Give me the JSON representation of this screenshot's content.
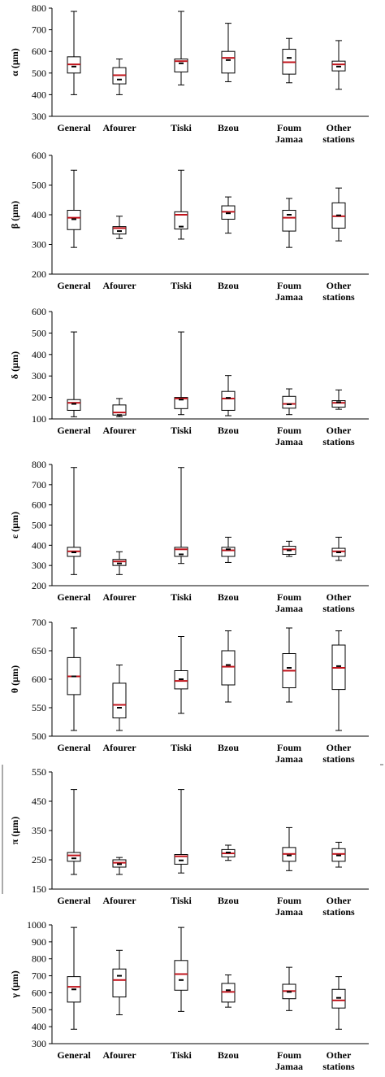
{
  "chart_data": [
    {
      "type": "boxplot",
      "ylabel": "α (µm)",
      "ylim": [
        300,
        800
      ],
      "yticks": [
        300,
        400,
        500,
        600,
        700,
        800
      ],
      "categories": [
        "General",
        "Afourer",
        "Tiski",
        "Bzou",
        "Foum Jamaa",
        "Other stations"
      ],
      "boxes": [
        {
          "min": 400,
          "q1": 500,
          "median": 540,
          "q3": 575,
          "max": 785,
          "mean": 530
        },
        {
          "min": 400,
          "q1": 450,
          "median": 490,
          "q3": 525,
          "max": 565,
          "mean": 470
        },
        {
          "min": 445,
          "q1": 505,
          "median": 555,
          "q3": 565,
          "max": 785,
          "mean": 545
        },
        {
          "min": 460,
          "q1": 500,
          "median": 570,
          "q3": 600,
          "max": 730,
          "mean": 560
        },
        {
          "min": 455,
          "q1": 495,
          "median": 550,
          "q3": 610,
          "max": 660,
          "mean": 570
        },
        {
          "min": 425,
          "q1": 510,
          "median": 540,
          "q3": 555,
          "max": 650,
          "mean": 530
        }
      ]
    },
    {
      "type": "boxplot",
      "ylabel": "β (µm)",
      "ylim": [
        200,
        600
      ],
      "yticks": [
        200,
        300,
        400,
        500,
        600
      ],
      "categories": [
        "General",
        "Afourer",
        "Tiski",
        "Bzou",
        "Foum Jamaa",
        "Other stations"
      ],
      "boxes": [
        {
          "min": 290,
          "q1": 350,
          "median": 390,
          "q3": 415,
          "max": 550,
          "mean": 385
        },
        {
          "min": 320,
          "q1": 335,
          "median": 355,
          "q3": 360,
          "max": 395,
          "mean": 345
        },
        {
          "min": 318,
          "q1": 352,
          "median": 400,
          "q3": 410,
          "max": 550,
          "mean": 360
        },
        {
          "min": 338,
          "q1": 385,
          "median": 410,
          "q3": 430,
          "max": 460,
          "mean": 405
        },
        {
          "min": 290,
          "q1": 345,
          "median": 390,
          "q3": 415,
          "max": 455,
          "mean": 400
        },
        {
          "min": 312,
          "q1": 355,
          "median": 395,
          "q3": 440,
          "max": 490,
          "mean": 398
        }
      ]
    },
    {
      "type": "boxplot",
      "ylabel": "δ (µm)",
      "ylim": [
        100,
        600
      ],
      "yticks": [
        100,
        200,
        300,
        400,
        500,
        600
      ],
      "categories": [
        "General",
        "Afourer",
        "Tiski",
        "Bzou",
        "Foum Jamaa",
        "Other stations"
      ],
      "boxes": [
        {
          "min": 110,
          "q1": 140,
          "median": 175,
          "q3": 190,
          "max": 505,
          "mean": 170
        },
        {
          "min": 110,
          "q1": 118,
          "median": 130,
          "q3": 165,
          "max": 195,
          "mean": 118
        },
        {
          "min": 120,
          "q1": 148,
          "median": 195,
          "q3": 200,
          "max": 505,
          "mean": 190
        },
        {
          "min": 115,
          "q1": 140,
          "median": 195,
          "q3": 228,
          "max": 302,
          "mean": 198
        },
        {
          "min": 120,
          "q1": 150,
          "median": 170,
          "q3": 205,
          "max": 240,
          "mean": 168
        },
        {
          "min": 145,
          "q1": 155,
          "median": 175,
          "q3": 185,
          "max": 235,
          "mean": 178
        }
      ]
    },
    {
      "type": "boxplot",
      "ylabel": "ε (µm)",
      "ylim": [
        200,
        800
      ],
      "yticks": [
        200,
        300,
        400,
        500,
        600,
        700,
        800
      ],
      "categories": [
        "General",
        "Afourer",
        "Tiski",
        "Bzou",
        "Foum Jamaa",
        "Other stations"
      ],
      "boxes": [
        {
          "min": 255,
          "q1": 345,
          "median": 370,
          "q3": 390,
          "max": 785,
          "mean": 365
        },
        {
          "min": 255,
          "q1": 300,
          "median": 320,
          "q3": 330,
          "max": 368,
          "mean": 310
        },
        {
          "min": 310,
          "q1": 345,
          "median": 380,
          "q3": 390,
          "max": 785,
          "mean": 355
        },
        {
          "min": 315,
          "q1": 345,
          "median": 375,
          "q3": 390,
          "max": 440,
          "mean": 380
        },
        {
          "min": 345,
          "q1": 355,
          "median": 380,
          "q3": 395,
          "max": 420,
          "mean": 375
        },
        {
          "min": 325,
          "q1": 345,
          "median": 370,
          "q3": 385,
          "max": 440,
          "mean": 365
        }
      ]
    },
    {
      "type": "boxplot",
      "ylabel": "θ (µm)",
      "ylim": [
        500,
        700
      ],
      "yticks": [
        500,
        550,
        600,
        650,
        700
      ],
      "categories": [
        "General",
        "Afourer",
        "Tiski",
        "Bzou",
        "Foum Jamaa",
        "Other stations"
      ],
      "boxes": [
        {
          "min": 510,
          "q1": 573,
          "median": 605,
          "q3": 638,
          "max": 690,
          "mean": 605
        },
        {
          "min": 510,
          "q1": 532,
          "median": 555,
          "q3": 593,
          "max": 625,
          "mean": 550
        },
        {
          "min": 540,
          "q1": 583,
          "median": 597,
          "q3": 615,
          "max": 675,
          "mean": 600
        },
        {
          "min": 560,
          "q1": 590,
          "median": 622,
          "q3": 650,
          "max": 685,
          "mean": 625
        },
        {
          "min": 560,
          "q1": 585,
          "median": 615,
          "q3": 645,
          "max": 690,
          "mean": 620
        },
        {
          "min": 510,
          "q1": 582,
          "median": 620,
          "q3": 660,
          "max": 685,
          "mean": 623
        }
      ]
    },
    {
      "type": "boxplot",
      "ylabel": "π (µm)",
      "ylim": [
        150,
        550
      ],
      "yticks": [
        150,
        250,
        350,
        450,
        550
      ],
      "categories": [
        "General",
        "Afourer",
        "Tiski",
        "Bzou",
        "Foum Jamaa",
        "Other stations"
      ],
      "boxes": [
        {
          "min": 200,
          "q1": 245,
          "median": 265,
          "q3": 275,
          "max": 490,
          "mean": 255
        },
        {
          "min": 200,
          "q1": 225,
          "median": 240,
          "q3": 250,
          "max": 258,
          "mean": 235
        },
        {
          "min": 205,
          "q1": 235,
          "median": 262,
          "q3": 268,
          "max": 490,
          "mean": 248
        },
        {
          "min": 248,
          "q1": 260,
          "median": 272,
          "q3": 285,
          "max": 300,
          "mean": 275
        },
        {
          "min": 213,
          "q1": 245,
          "median": 270,
          "q3": 292,
          "max": 360,
          "mean": 265
        },
        {
          "min": 225,
          "q1": 245,
          "median": 270,
          "q3": 288,
          "max": 310,
          "mean": 265
        }
      ]
    },
    {
      "type": "boxplot",
      "ylabel": "γ (µm)",
      "ylim": [
        300,
        1000
      ],
      "yticks": [
        300,
        400,
        500,
        600,
        700,
        800,
        900,
        1000
      ],
      "categories": [
        "General",
        "Afourer",
        "Tiski",
        "Bzou",
        "Foum Jamaa",
        "Other stations"
      ],
      "boxes": [
        {
          "min": 385,
          "q1": 545,
          "median": 635,
          "q3": 695,
          "max": 985,
          "mean": 620
        },
        {
          "min": 470,
          "q1": 575,
          "median": 675,
          "q3": 740,
          "max": 850,
          "mean": 700
        },
        {
          "min": 490,
          "q1": 615,
          "median": 710,
          "q3": 790,
          "max": 985,
          "mean": 675
        },
        {
          "min": 515,
          "q1": 545,
          "median": 605,
          "q3": 655,
          "max": 705,
          "mean": 615
        },
        {
          "min": 495,
          "q1": 565,
          "median": 610,
          "q3": 650,
          "max": 750,
          "mean": 605
        },
        {
          "min": 385,
          "q1": 510,
          "median": 555,
          "q3": 620,
          "max": 695,
          "mean": 570
        }
      ]
    }
  ],
  "colors": {
    "median": "#c0141c",
    "mean": "#000000",
    "box": "#000000"
  }
}
